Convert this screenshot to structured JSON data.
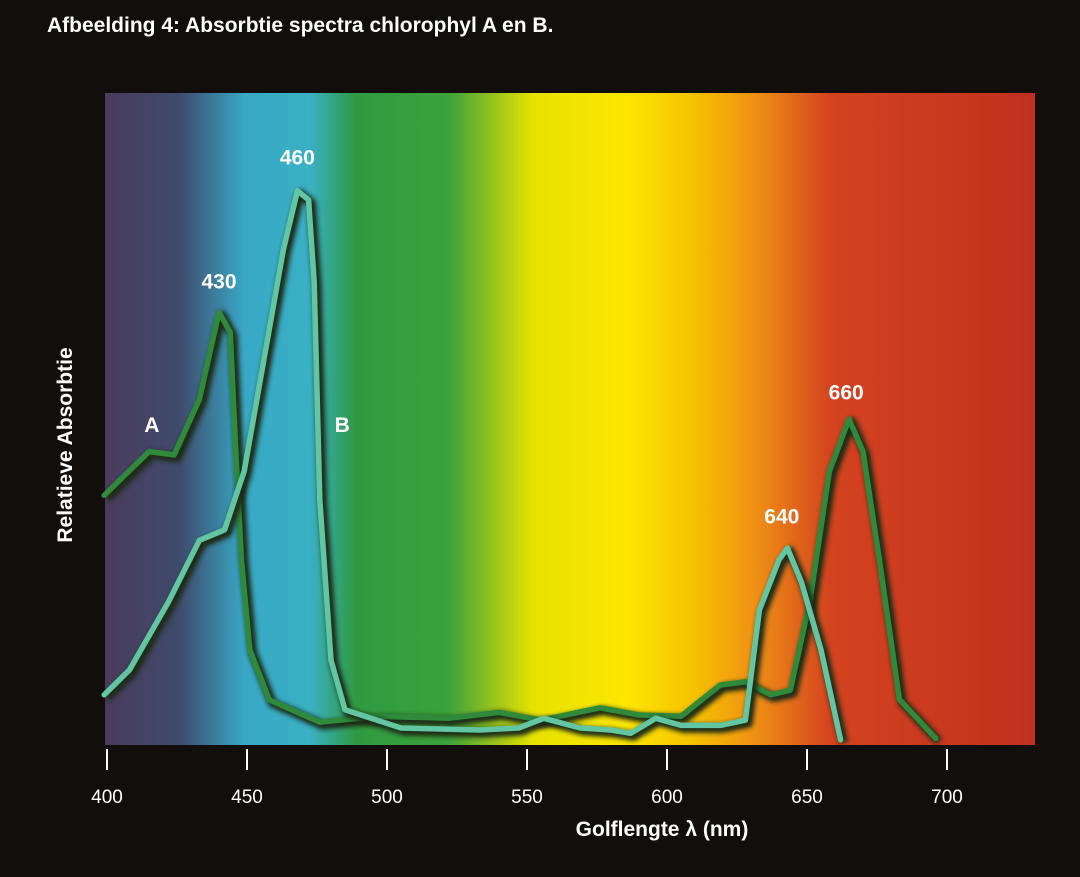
{
  "chart_data": {
    "type": "line",
    "title": "Afbeelding 4: Absorbtie spectra chlorophyl A en B.",
    "xlabel": "Golflengte λ (nm)",
    "ylabel": "Relatieve Absorbtie",
    "xlim": [
      400,
      732
    ],
    "ylim": [
      0,
      100
    ],
    "xticks": [
      400,
      450,
      500,
      550,
      600,
      650,
      700
    ],
    "grid": false,
    "background": "visible light spectrum gradient",
    "colors": {
      "A": "#2f8a3c",
      "B": "#62c6a2",
      "shadow": "#1a2a14"
    },
    "series": [
      {
        "name": "A",
        "x": [
          399,
          415,
          424,
          433,
          440,
          444,
          446,
          448,
          451,
          458,
          476,
          497,
          522,
          540,
          555,
          576,
          590,
          605,
          619,
          628,
          637,
          644,
          651,
          658,
          665,
          670,
          676,
          683,
          696
        ],
        "y": [
          38.3,
          45,
          44.5,
          53,
          66.4,
          63.3,
          45,
          28.4,
          14.6,
          6.9,
          3.5,
          4.4,
          4.1,
          5,
          3.8,
          5.7,
          4.6,
          4.4,
          9.2,
          9.7,
          7.7,
          8.4,
          22,
          42,
          50,
          45,
          28,
          7,
          1
        ]
      },
      {
        "name": "B",
        "x": [
          399,
          408,
          422,
          433,
          442,
          449,
          456,
          463,
          468,
          472,
          474,
          476,
          480,
          485,
          505,
          533,
          547,
          556,
          569,
          580,
          587,
          596,
          605,
          619,
          628,
          633,
          640,
          643,
          648,
          655,
          662
        ],
        "y": [
          7.7,
          11.5,
          22,
          31.4,
          33,
          42,
          59,
          76,
          85,
          83.6,
          71,
          37.6,
          13,
          5.4,
          2.6,
          2.3,
          2.6,
          4.1,
          2.6,
          2.3,
          1.8,
          4.1,
          3,
          3,
          3.8,
          20.7,
          28.4,
          30.2,
          25,
          14.6,
          0.8
        ]
      }
    ],
    "annotations": [
      {
        "text": "430",
        "x": 440,
        "y": 70
      },
      {
        "text": "460",
        "x": 468,
        "y": 89
      },
      {
        "text": "640",
        "x": 641,
        "y": 34
      },
      {
        "text": "660",
        "x": 664,
        "y": 53
      },
      {
        "text": "A",
        "x": 416,
        "y": 48
      },
      {
        "text": "B",
        "x": 484,
        "y": 48
      }
    ]
  }
}
